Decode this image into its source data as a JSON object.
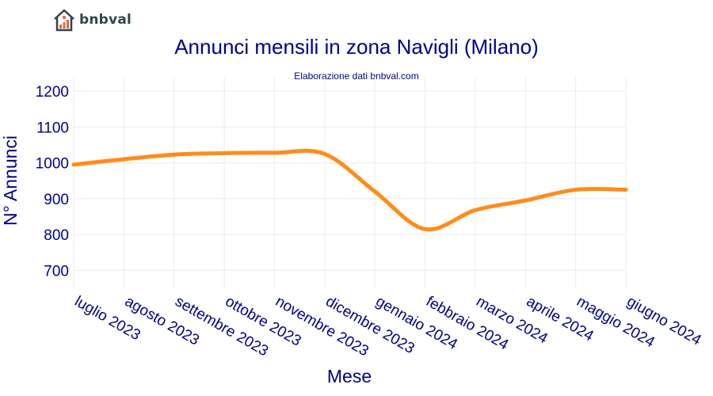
{
  "brand": {
    "name": "bnbval",
    "icon": "house-chart-icon"
  },
  "chart_data": {
    "type": "line",
    "title": "Annunci mensili in zona Navigli (Milano)",
    "subtitle": "Elaborazione dati bnbval.com",
    "xlabel": "Mese",
    "ylabel": "N° Annunci",
    "categories": [
      "luglio 2023",
      "agosto 2023",
      "settembre 2023",
      "ottobre 2023",
      "novembre 2023",
      "dicembre 2023",
      "gennaio 2024",
      "febbraio 2024",
      "marzo 2024",
      "aprile 2024",
      "maggio 2024",
      "giugno 2024"
    ],
    "series": [
      {
        "name": "Annunci",
        "values": [
          995,
          1010,
          1023,
          1027,
          1028,
          1025,
          920,
          815,
          868,
          895,
          925,
          925
        ]
      }
    ],
    "yticks": [
      700,
      800,
      900,
      1000,
      1100,
      1200
    ],
    "ylim": [
      650,
      1240
    ],
    "grid": true,
    "line_color": "#ff8c1a"
  }
}
